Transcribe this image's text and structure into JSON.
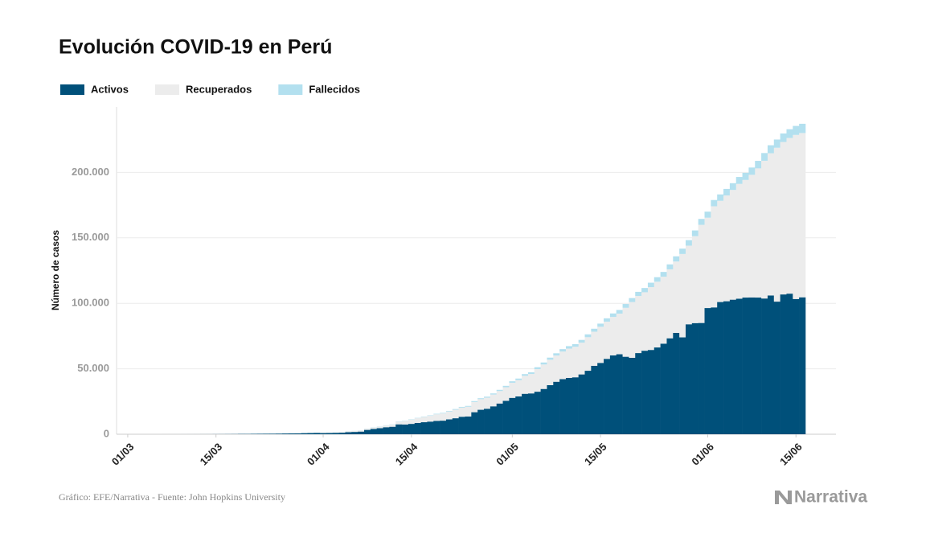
{
  "chart_data": {
    "type": "stacked_bar",
    "title": "Evolución COVID-19 en Perú",
    "y_label": "Número de casos",
    "source": "Gráfico: EFE/Narrativa - Fuente: John Hopkins University",
    "logo": "Narrativa",
    "categories": [
      "01/03",
      null,
      null,
      null,
      null,
      null,
      null,
      null,
      null,
      null,
      null,
      null,
      null,
      null,
      "15/03",
      null,
      null,
      null,
      null,
      null,
      null,
      null,
      null,
      null,
      null,
      null,
      null,
      null,
      null,
      null,
      null,
      "01/04",
      null,
      null,
      null,
      null,
      null,
      null,
      null,
      null,
      null,
      null,
      null,
      null,
      null,
      "15/04",
      null,
      null,
      null,
      null,
      null,
      null,
      null,
      null,
      null,
      null,
      null,
      null,
      null,
      null,
      null,
      "01/05",
      null,
      null,
      null,
      null,
      null,
      null,
      null,
      null,
      null,
      null,
      null,
      null,
      null,
      "15/05",
      null,
      null,
      null,
      null,
      null,
      null,
      null,
      null,
      null,
      null,
      null,
      null,
      null,
      null,
      null,
      null,
      "01/06",
      null,
      null,
      null,
      null,
      null,
      null,
      null,
      null,
      null,
      null,
      null,
      null,
      null,
      "15/06",
      null
    ],
    "series": [
      {
        "name": "Activos",
        "color": "#00507a",
        "values": [
          0,
          0,
          0,
          0,
          0,
          1,
          6,
          7,
          9,
          11,
          17,
          22,
          38,
          43,
          71,
          86,
          117,
          145,
          234,
          231,
          313,
          358,
          390,
          409,
          471,
          569,
          619,
          653,
          833,
          926,
          1035,
          891,
          949,
          1084,
          1173,
          1598,
          1769,
          2047,
          3321,
          4118,
          4628,
          5367,
          5726,
          7568,
          7473,
          7921,
          8617,
          9189,
          9672,
          10228,
          10380,
          11353,
          12220,
          13360,
          13592,
          16834,
          18701,
          19492,
          21336,
          23488,
          25520,
          27800,
          28900,
          30900,
          31200,
          32500,
          34600,
          37500,
          40100,
          42100,
          43000,
          43500,
          45700,
          48500,
          52300,
          54500,
          57600,
          60200,
          61100,
          59200,
          58400,
          62000,
          63800,
          64400,
          66300,
          69200,
          73300,
          77400,
          74000,
          84000,
          84900,
          85000,
          96400,
          96900,
          101000,
          101600,
          102800,
          103500,
          104400,
          104500,
          104400,
          103700,
          106000,
          101300,
          106800,
          107400,
          103300,
          104600
        ]
      },
      {
        "name": "Recuperados",
        "color": "#ececec",
        "values": [
          0,
          0,
          0,
          0,
          0,
          0,
          0,
          0,
          0,
          0,
          0,
          0,
          0,
          0,
          0,
          0,
          0,
          0,
          0,
          0,
          0,
          0,
          0,
          0,
          0,
          0,
          0,
          0,
          0,
          0,
          0,
          394,
          410,
          450,
          500,
          600,
          700,
          800,
          900,
          1000,
          1100,
          1300,
          1600,
          2000,
          2600,
          3300,
          3600,
          4000,
          4400,
          5000,
          5500,
          6000,
          6500,
          6982,
          7422,
          7797,
          8088,
          8425,
          9000,
          9500,
          10405,
          11535,
          12434,
          13742,
          14828,
          17245,
          18684,
          19399,
          20033,
          21101,
          22418,
          23361,
          24302,
          25637,
          26037,
          27603,
          28418,
          29425,
          31044,
          37369,
          42596,
          43621,
          44654,
          47981,
          50203,
          51150,
          52663,
          54522,
          63680,
          60055,
          66400,
          74970,
          69005,
          77247,
          77304,
          80769,
          83796,
          87714,
          89831,
          93665,
          98685,
          105185,
          108640,
          117524,
          116438,
          118904,
          125340,
          125500
        ]
      },
      {
        "name": "Fallecidos",
        "color": "#b3e0ef",
        "values": [
          0,
          0,
          0,
          0,
          0,
          0,
          0,
          0,
          0,
          0,
          0,
          0,
          0,
          0,
          0,
          0,
          0,
          0,
          0,
          3,
          5,
          5,
          5,
          7,
          9,
          11,
          16,
          18,
          19,
          24,
          30,
          38,
          55,
          61,
          73,
          83,
          92,
          107,
          121,
          138,
          169,
          181,
          193,
          216,
          230,
          254,
          274,
          300,
          348,
          400,
          445,
          484,
          530,
          572,
          634,
          700,
          728,
          782,
          854,
          943,
          1051,
          1124,
          1200,
          1286,
          1344,
          1444,
          1533,
          1627,
          1714,
          1814,
          1889,
          1961,
          2057,
          2169,
          2267,
          2392,
          2523,
          2648,
          2789,
          2914,
          3024,
          3148,
          3244,
          3373,
          3456,
          3629,
          3788,
          3983,
          4099,
          4230,
          4371,
          4506,
          4634,
          4767,
          4894,
          5031,
          5162,
          5301,
          5465,
          5571,
          5738,
          5903,
          6109,
          6308,
          6498,
          6688,
          6860,
          7056
        ]
      }
    ],
    "ylim": [
      0,
      250000
    ],
    "yticks": [
      0,
      {
        "value": 50000,
        "label": "50.000"
      },
      {
        "value": 100000,
        "label": "100.000"
      },
      {
        "value": 150000,
        "label": "150.000"
      },
      {
        "value": 200000,
        "label": "200.000"
      }
    ],
    "grid": true,
    "legend": "top-left"
  }
}
